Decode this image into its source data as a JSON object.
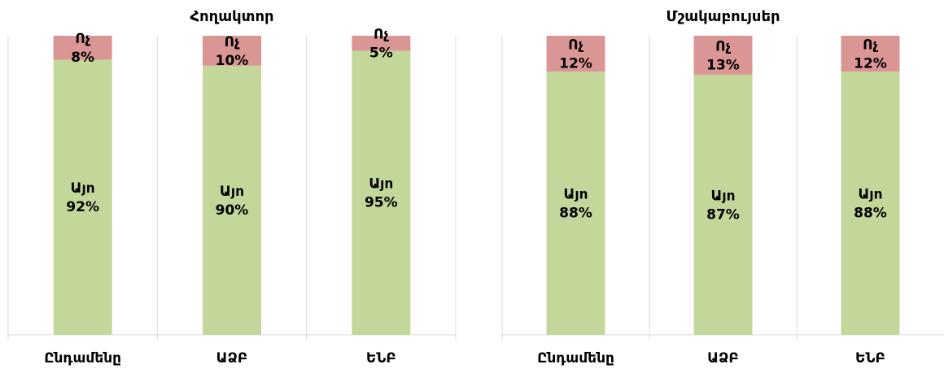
{
  "chart_data": [
    {
      "type": "bar",
      "stacked": true,
      "percent": true,
      "title": "Հողակտոր",
      "categories": [
        "Ընդամենը",
        "ԱՁԲ",
        "ԵՆԲ"
      ],
      "series": [
        {
          "name": "Այո",
          "values": [
            92,
            90,
            95
          ],
          "color": "#c4d79b"
        },
        {
          "name": "Ոչ",
          "values": [
            8,
            10,
            5
          ],
          "color": "#da9694"
        }
      ],
      "data_labels": [
        {
          "yes": "Այո\n92%",
          "no": "Ոչ\n8%"
        },
        {
          "yes": "Այո\n90%",
          "no": "Ոչ\n10%"
        },
        {
          "yes": "Այո\n95%",
          "no": "Ոչ\n5%"
        }
      ],
      "ylim": [
        0,
        100
      ],
      "grid": true,
      "legend": "none"
    },
    {
      "type": "bar",
      "stacked": true,
      "percent": true,
      "title": "Մշակաբույսեր",
      "categories": [
        "Ընդամենը",
        "ԱՁԲ",
        "ԵՆԲ"
      ],
      "series": [
        {
          "name": "Այո",
          "values": [
            88,
            87,
            88
          ],
          "color": "#c4d79b"
        },
        {
          "name": "Ոչ",
          "values": [
            12,
            13,
            12
          ],
          "color": "#da9694"
        }
      ],
      "data_labels": [
        {
          "yes": "Այո\n88%",
          "no": "Ոչ\n12%"
        },
        {
          "yes": "Այո\n87%",
          "no": "Ոչ\n13%"
        },
        {
          "yes": "Այո\n88%",
          "no": "Ոչ\n12%"
        }
      ],
      "ylim": [
        0,
        100
      ],
      "grid": true,
      "legend": "none"
    }
  ]
}
